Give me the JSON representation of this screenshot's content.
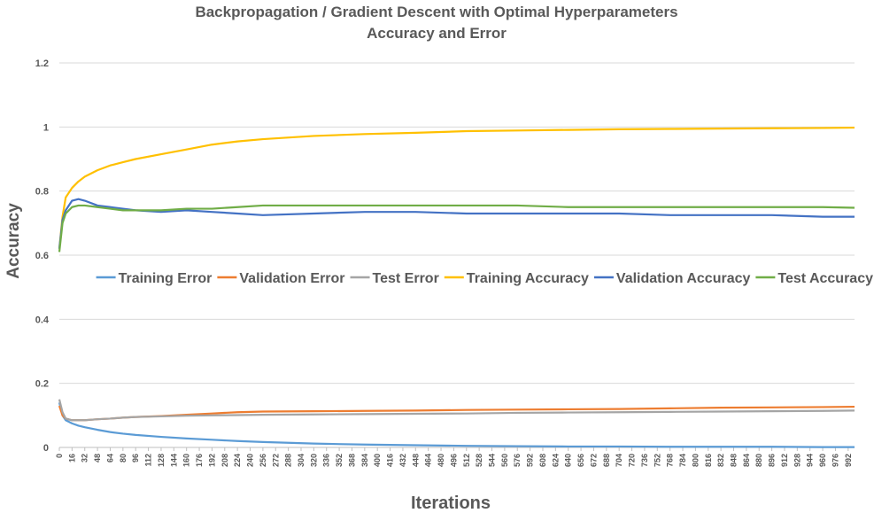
{
  "chart_data": {
    "type": "line",
    "title": "Backpropagation / Gradient Descent with Optimal Hyperparameters",
    "subtitle": "Accuracy and Error",
    "x_label": "Iterations",
    "y_label": "Accuracy",
    "x": [
      0,
      4,
      8,
      16,
      24,
      32,
      48,
      64,
      80,
      96,
      128,
      160,
      192,
      224,
      256,
      320,
      384,
      448,
      512,
      576,
      640,
      704,
      768,
      832,
      896,
      960,
      1000
    ],
    "xlim": [
      0,
      1000
    ],
    "xticks": [
      0,
      16,
      32,
      48,
      64,
      80,
      96,
      112,
      128,
      144,
      160,
      176,
      192,
      208,
      224,
      240,
      256,
      272,
      288,
      304,
      320,
      336,
      352,
      368,
      384,
      400,
      416,
      432,
      448,
      464,
      480,
      496,
      512,
      528,
      544,
      560,
      576,
      592,
      608,
      624,
      640,
      656,
      672,
      688,
      704,
      720,
      736,
      752,
      768,
      784,
      800,
      816,
      832,
      848,
      864,
      880,
      896,
      912,
      928,
      944,
      960,
      976,
      992
    ],
    "ylim": [
      0,
      1.2
    ],
    "yticks": [
      0,
      0.2,
      0.4,
      0.6,
      0.8,
      1,
      1.2
    ],
    "grid": true,
    "legend": "center",
    "series": [
      {
        "name": "Training Error",
        "color": "#5B9BD5",
        "values": [
          0.14,
          0.1,
          0.085,
          0.075,
          0.068,
          0.063,
          0.055,
          0.048,
          0.043,
          0.039,
          0.033,
          0.028,
          0.024,
          0.02,
          0.017,
          0.012,
          0.009,
          0.007,
          0.005,
          0.004,
          0.003,
          0.003,
          0.002,
          0.002,
          0.002,
          0.001,
          0.001
        ]
      },
      {
        "name": "Validation Error",
        "color": "#ED7D31",
        "values": [
          0.13,
          0.1,
          0.09,
          0.085,
          0.085,
          0.085,
          0.088,
          0.09,
          0.093,
          0.095,
          0.098,
          0.102,
          0.106,
          0.11,
          0.112,
          0.113,
          0.114,
          0.115,
          0.117,
          0.118,
          0.119,
          0.12,
          0.122,
          0.124,
          0.125,
          0.126,
          0.127
        ]
      },
      {
        "name": "Test Error",
        "color": "#A5A5A5",
        "values": [
          0.15,
          0.11,
          0.09,
          0.085,
          0.085,
          0.085,
          0.088,
          0.09,
          0.093,
          0.095,
          0.097,
          0.099,
          0.1,
          0.101,
          0.102,
          0.103,
          0.104,
          0.105,
          0.106,
          0.108,
          0.109,
          0.11,
          0.111,
          0.112,
          0.113,
          0.114,
          0.115
        ]
      },
      {
        "name": "Training Accuracy",
        "color": "#FFC000",
        "values": [
          0.62,
          0.72,
          0.78,
          0.81,
          0.83,
          0.845,
          0.865,
          0.88,
          0.89,
          0.9,
          0.915,
          0.93,
          0.945,
          0.955,
          0.962,
          0.972,
          0.978,
          0.982,
          0.987,
          0.989,
          0.991,
          0.993,
          0.994,
          0.995,
          0.996,
          0.997,
          0.998
        ]
      },
      {
        "name": "Validation Accuracy",
        "color": "#4472C4",
        "values": [
          0.62,
          0.71,
          0.74,
          0.77,
          0.775,
          0.77,
          0.755,
          0.75,
          0.745,
          0.74,
          0.735,
          0.74,
          0.735,
          0.73,
          0.725,
          0.73,
          0.735,
          0.735,
          0.73,
          0.73,
          0.73,
          0.73,
          0.725,
          0.725,
          0.725,
          0.72,
          0.72
        ]
      },
      {
        "name": "Test Accuracy",
        "color": "#70AD47",
        "values": [
          0.61,
          0.7,
          0.73,
          0.75,
          0.755,
          0.755,
          0.75,
          0.745,
          0.74,
          0.74,
          0.74,
          0.745,
          0.745,
          0.75,
          0.755,
          0.755,
          0.755,
          0.755,
          0.755,
          0.755,
          0.75,
          0.75,
          0.75,
          0.75,
          0.75,
          0.75,
          0.748
        ]
      }
    ]
  }
}
